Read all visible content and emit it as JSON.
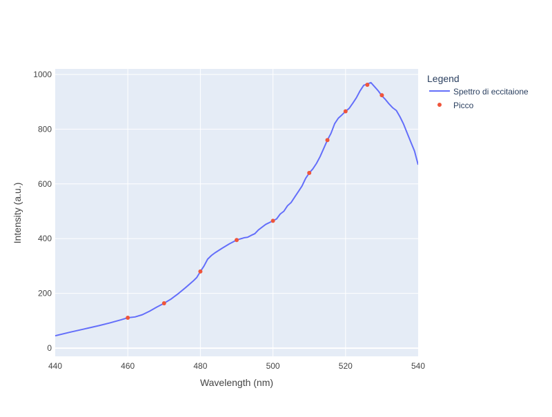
{
  "chart_data": {
    "type": "line",
    "title": "",
    "xlabel": "Wavelength (nm)",
    "ylabel": "Intensity (a.u.)",
    "xlim": [
      440,
      540
    ],
    "ylim": [
      -30,
      1020
    ],
    "x_ticks": [
      440,
      460,
      480,
      500,
      520,
      540
    ],
    "y_ticks": [
      0,
      200,
      400,
      600,
      800,
      1000
    ],
    "grid": true,
    "legend_title": "Legend",
    "legend_position": "right",
    "colors": {
      "plot_bg": "#e5ecf6",
      "line": "#636efa",
      "marker": "#ef553b",
      "text": "#2a3f5f",
      "tick_text": "#444444"
    },
    "series": [
      {
        "name": "Spettro di eccitaione",
        "mode": "lines",
        "x": [
          440,
          444,
          448,
          452,
          455,
          458,
          460,
          462,
          464,
          466,
          468,
          470,
          472,
          474,
          476,
          478,
          479,
          480,
          481,
          482,
          483,
          484,
          486,
          488,
          490,
          492,
          493,
          494,
          495,
          496,
          498,
          500,
          501,
          502,
          503,
          504,
          505,
          506,
          507,
          508,
          509,
          510,
          511,
          512,
          513,
          514,
          515,
          516,
          517,
          518,
          519,
          520,
          521,
          522,
          523,
          524,
          525,
          526,
          527,
          528,
          529,
          530,
          531,
          532,
          533,
          534,
          535,
          536,
          537,
          538,
          539,
          540
        ],
        "y": [
          45,
          58,
          70,
          82,
          92,
          103,
          111,
          114,
          122,
          135,
          150,
          164,
          180,
          200,
          222,
          245,
          258,
          280,
          300,
          325,
          338,
          348,
          365,
          381,
          395,
          403,
          405,
          412,
          418,
          432,
          452,
          465,
          472,
          490,
          500,
          520,
          532,
          552,
          572,
          592,
          620,
          640,
          655,
          675,
          700,
          730,
          760,
          785,
          820,
          840,
          852,
          865,
          876,
          895,
          915,
          940,
          960,
          965,
          970,
          955,
          940,
          922,
          908,
          892,
          878,
          868,
          845,
          818,
          785,
          752,
          720,
          670
        ]
      },
      {
        "name": "Picco",
        "mode": "markers",
        "x": [
          460,
          470,
          480,
          490,
          500,
          510,
          515,
          520,
          526,
          530
        ],
        "y": [
          111,
          164,
          280,
          395,
          465,
          640,
          760,
          865,
          962,
          924
        ]
      }
    ]
  }
}
